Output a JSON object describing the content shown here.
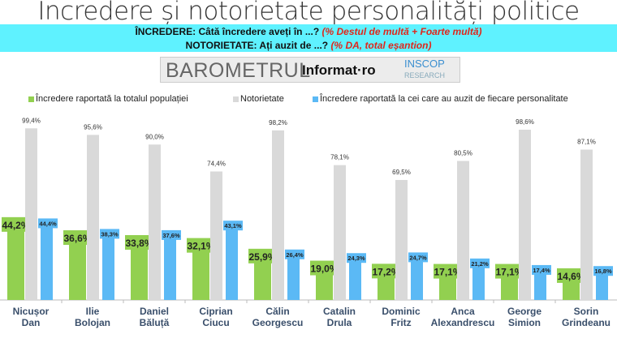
{
  "title": "Incredere și notorietate personalități politice",
  "question1": {
    "label": "ÎNCREDERE:",
    "text": " Câtă încredere aveți în ...? ",
    "note": "(% Destul de multă + Foarte multă)"
  },
  "question2": {
    "label": "NOTORIETATE:",
    "text": " Ați auzit de ...? ",
    "note": "(% DA, total eșantion)"
  },
  "logo": {
    "barometer": "BAROMETRUL",
    "informat": "Informat·ro",
    "inscop": "INSCOP",
    "research": "RESEARCH"
  },
  "chart_data": {
    "type": "bar",
    "categories": [
      "Nicușor Dan",
      "Ilie Bolojan",
      "Daniel Băluță",
      "Ciprian Ciucu",
      "Călin Georgescu",
      "Catalin Drula",
      "Dominic Fritz",
      "Anca Alexandrescu",
      "George Simion",
      "Sorin Grindeanu"
    ],
    "series": [
      {
        "name": "Încredere raportată la totalul populației",
        "color": "#92d050",
        "values": [
          44.2,
          36.6,
          33.8,
          32.1,
          25.9,
          19.0,
          17.2,
          17.1,
          17.1,
          14.6
        ],
        "labels": [
          "44,2%",
          "36,6%",
          "33,8%",
          "32,1%",
          "25,9%",
          "19,0%",
          "17,2%",
          "17,1%",
          "17,1%",
          "14,6%"
        ]
      },
      {
        "name": "Notorietate",
        "color": "#d9d9d9",
        "values": [
          99.4,
          95.6,
          90.0,
          74.4,
          98.2,
          78.1,
          69.5,
          80.5,
          98.6,
          87.1
        ],
        "labels": [
          "99,4%",
          "95,6%",
          "90,0%",
          "74,4%",
          "98,2%",
          "78,1%",
          "69,5%",
          "80,5%",
          "98,6%",
          "87,1%"
        ]
      },
      {
        "name": "Încredere raportată la cei care au auzit de fiecare personalitate",
        "color": "#5bb9f5",
        "values": [
          44.4,
          38.3,
          37.6,
          43.1,
          26.4,
          24.3,
          24.7,
          21.2,
          17.4,
          16.8
        ],
        "labels": [
          "44,4%",
          "38,3%",
          "37,6%",
          "43,1%",
          "26,4%",
          "24,3%",
          "24,7%",
          "21,2%",
          "17,4%",
          "16,8%"
        ]
      }
    ],
    "legend": "top"
  }
}
